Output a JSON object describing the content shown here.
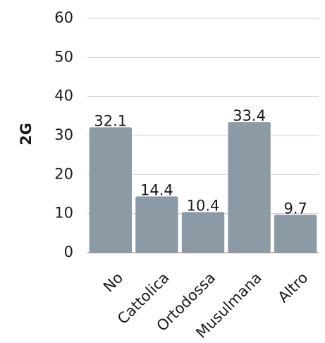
{
  "chart_data": {
    "type": "bar",
    "categories": [
      "No",
      "Cattolica",
      "Ortodossa",
      "Musulmana",
      "Altro"
    ],
    "values": [
      32.1,
      14.4,
      10.4,
      33.4,
      9.7
    ],
    "data_labels": [
      "32.1",
      "14.4",
      "10.4",
      "33.4",
      "9.7"
    ],
    "ylabel": "2G",
    "ylim": [
      0,
      60
    ],
    "yticks": [
      "0",
      "10",
      "20",
      "30",
      "40",
      "50",
      "60"
    ],
    "grid": true,
    "colors": {
      "bar": "#8c9aa6",
      "grid": "#cfcfcf",
      "axis": "#7f7f7f"
    }
  }
}
